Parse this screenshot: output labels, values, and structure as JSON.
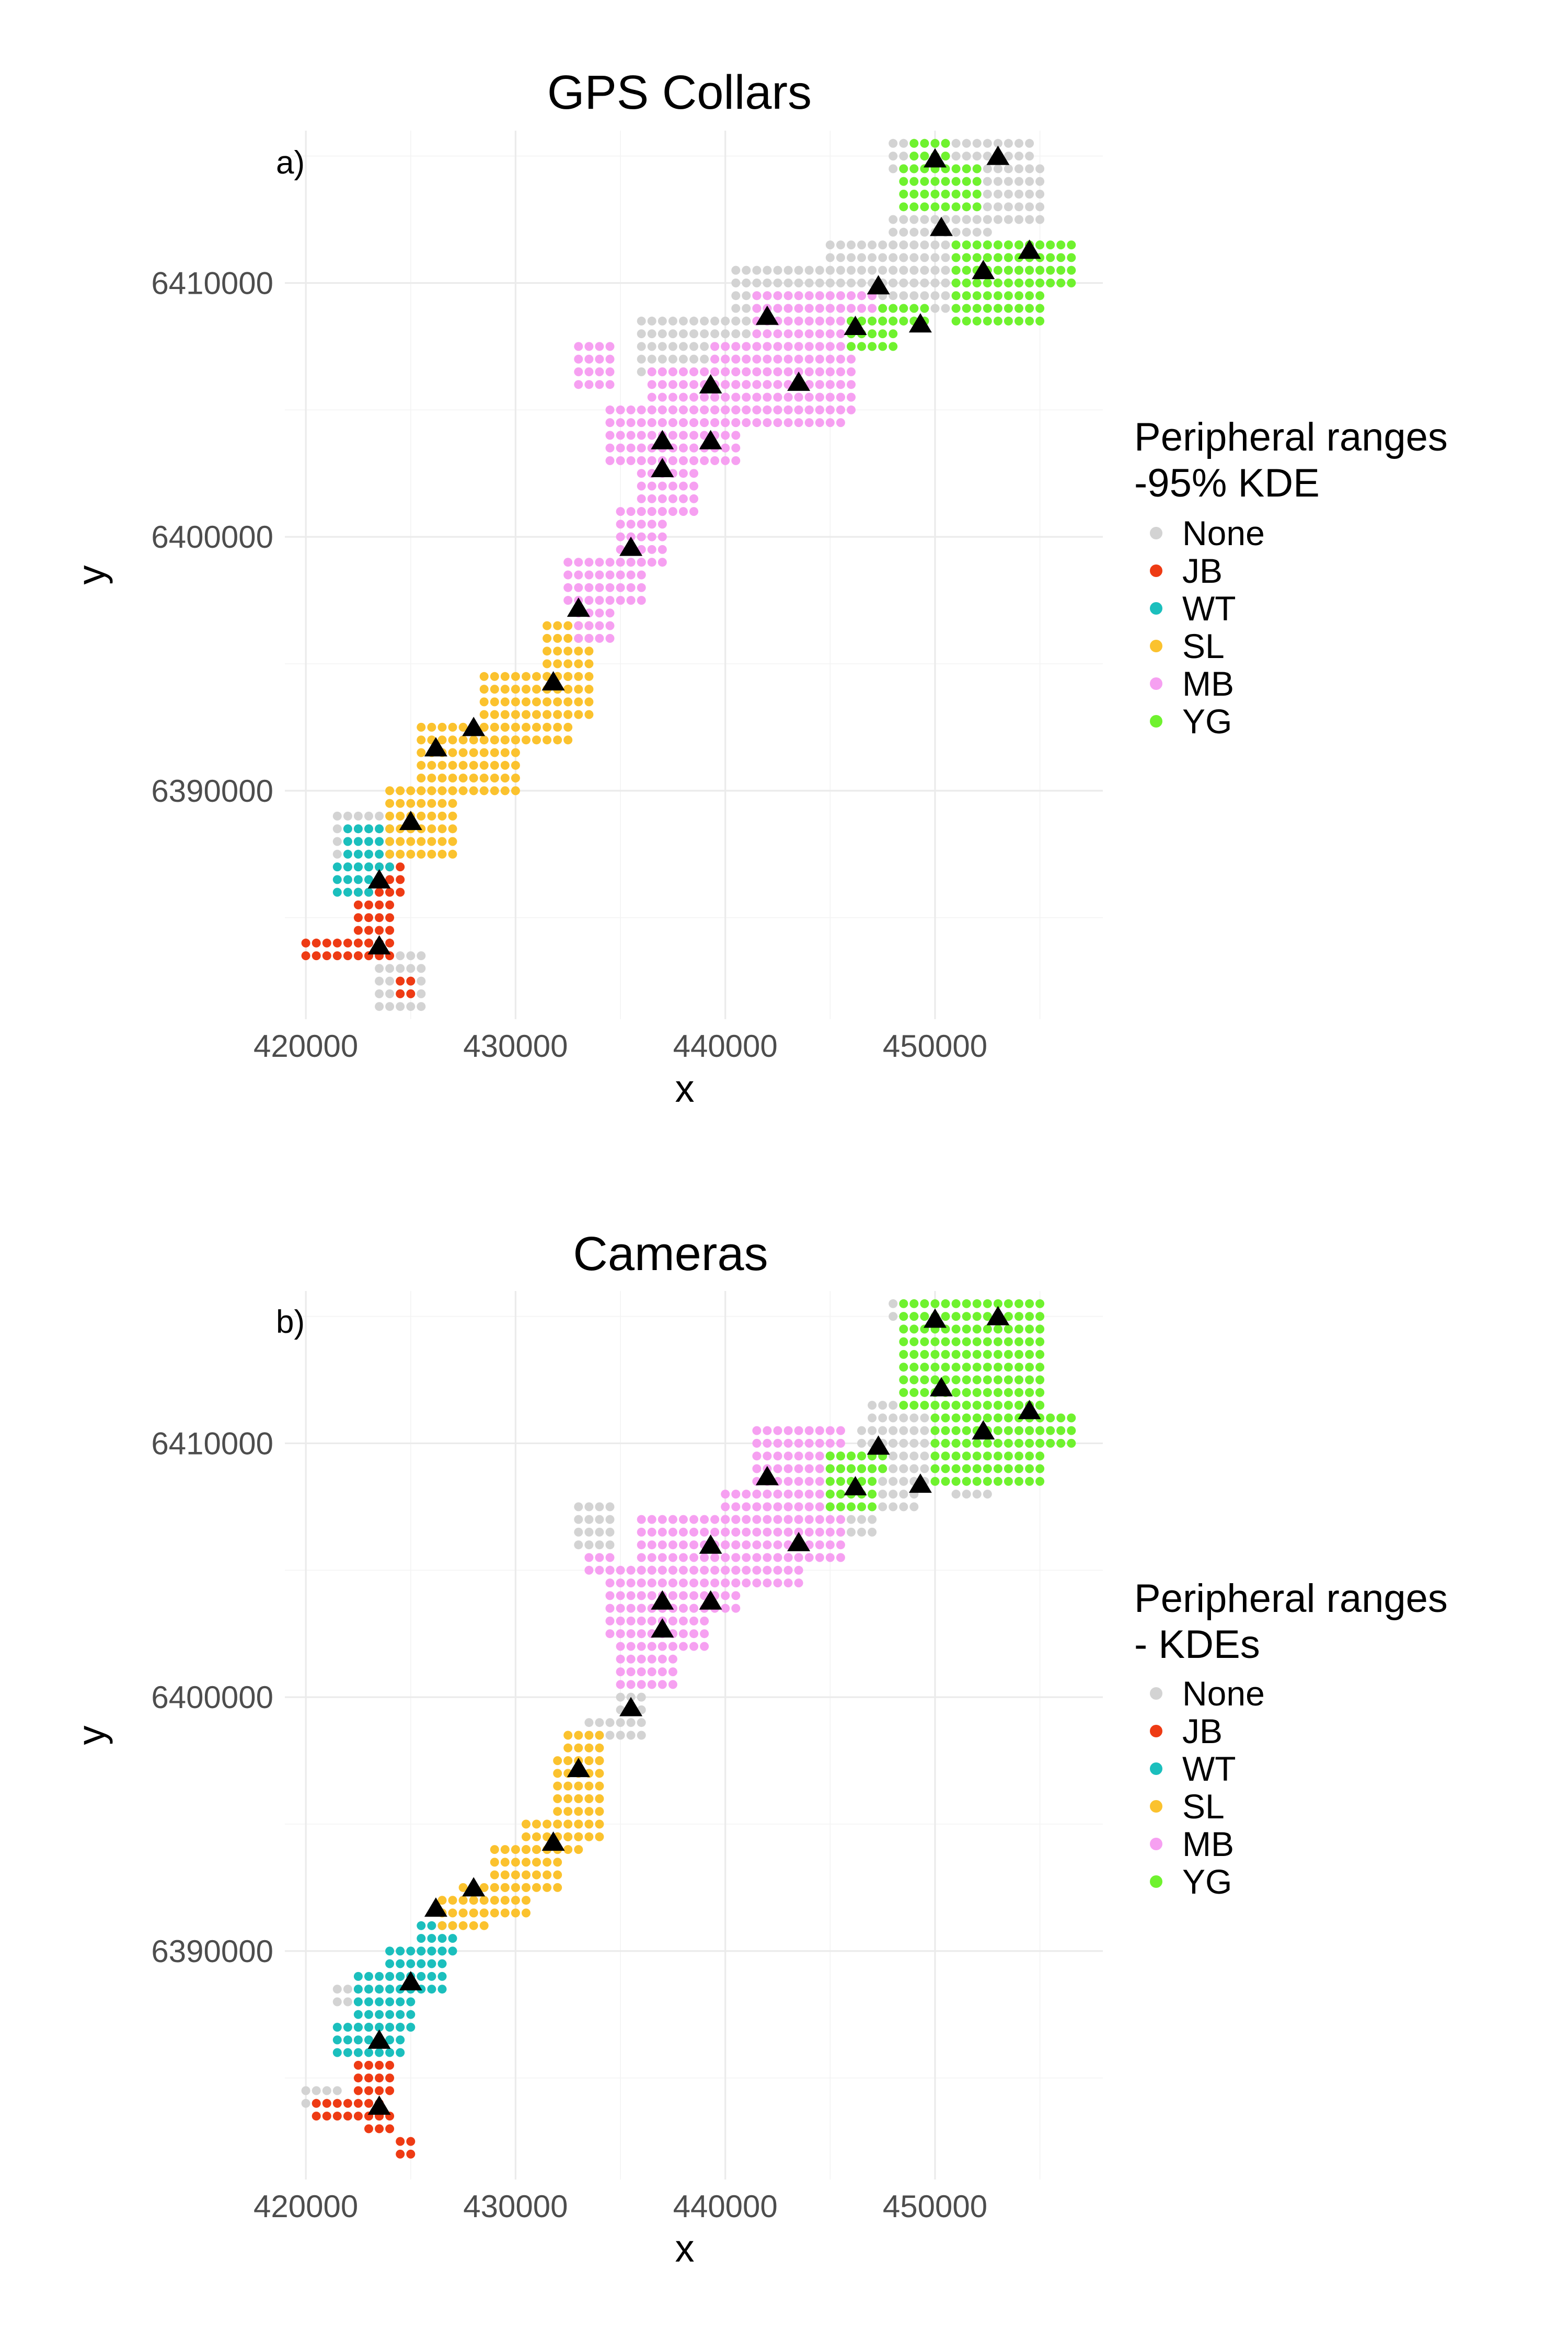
{
  "chart_data": [
    {
      "type": "scatter",
      "title": "GPS Collars",
      "panel_tag": "a)",
      "xlabel": "x",
      "ylabel": "y",
      "xlim": [
        419000,
        458000
      ],
      "ylim": [
        6381000,
        6416000
      ],
      "x_ticks": [
        420000,
        430000,
        440000,
        450000
      ],
      "x_tick_labels": [
        "420000",
        "430000",
        "440000",
        "450000"
      ],
      "y_ticks": [
        6390000,
        6400000,
        6410000
      ],
      "y_tick_labels": [
        "6390000",
        "6400000",
        "6410000"
      ],
      "grid": true,
      "legend": {
        "placement": "right",
        "title_lines": [
          "Peripheral ranges",
          "-95% KDE"
        ],
        "entries": [
          "None",
          "JB",
          "WT",
          "SL",
          "MB",
          "YG"
        ]
      },
      "series": [
        {
          "name": "None",
          "color": "#d3d3d3",
          "regions": [
            [
              421500,
              6387500,
              423500,
              6389000
            ],
            [
              423500,
              6381500,
              425500,
              6383500
            ],
            [
              436000,
              6406500,
              441000,
              6408500
            ],
            [
              440500,
              6408500,
              445000,
              6410800
            ],
            [
              445000,
              6408300,
              449000,
              6411500
            ],
            [
              448000,
              6410000,
              452500,
              6412500
            ],
            [
              449500,
              6409000,
              451500,
              6410500
            ],
            [
              448000,
              6414500,
              449500,
              6415500
            ],
            [
              450000,
              6415000,
              454500,
              6415600
            ],
            [
              451500,
              6412500,
              455000,
              6414500
            ]
          ]
        },
        {
          "name": "JB",
          "color": "#ee3b14",
          "regions": [
            [
              420000,
              6383500,
              423000,
              6384300
            ],
            [
              422500,
              6383500,
              424000,
              6386000
            ],
            [
              423500,
              6386000,
              424600,
              6387200
            ],
            [
              424200,
              6381800,
              425300,
              6382800
            ]
          ]
        },
        {
          "name": "WT",
          "color": "#1bbfbd",
          "regions": [
            [
              422000,
              6387000,
              424200,
              6388800
            ],
            [
              421500,
              6386000,
              423000,
              6387000
            ]
          ]
        },
        {
          "name": "SL",
          "color": "#fbc22e",
          "regions": [
            [
              424000,
              6387500,
              427000,
              6390000
            ],
            [
              425500,
              6390000,
              430000,
              6392600
            ],
            [
              428500,
              6392000,
              432500,
              6394500
            ],
            [
              431500,
              6393000,
              433500,
              6396500
            ]
          ]
        },
        {
          "name": "MB",
          "color": "#f6a0f1",
          "regions": [
            [
              433000,
              6395800,
              434500,
              6397300
            ],
            [
              432500,
              6397300,
              436000,
              6399300
            ],
            [
              435000,
              6399000,
              437000,
              6401000
            ],
            [
              436000,
              6401000,
              438500,
              6403500
            ],
            [
              434500,
              6403000,
              440500,
              6405000
            ],
            [
              436500,
              6404500,
              445500,
              6406800
            ],
            [
              433000,
              6405800,
              434500,
              6407500
            ],
            [
              439500,
              6405000,
              446000,
              6407500
            ],
            [
              441500,
              6407500,
              447000,
              6409600
            ]
          ]
        },
        {
          "name": "YG",
          "color": "#6ff22e",
          "regions": [
            [
              446000,
              6407300,
              448000,
              6408500
            ],
            [
              447500,
              6408300,
              449500,
              6409300
            ],
            [
              448500,
              6413000,
              452000,
              6414800
            ],
            [
              449000,
              6415000,
              450500,
              6415600
            ],
            [
              451000,
              6408500,
              455000,
              6411800
            ],
            [
              452500,
              6411300,
              456500,
              6411900
            ],
            [
              453500,
              6410000,
              456500,
              6411300
            ]
          ]
        }
      ],
      "points": {
        "name": "sites",
        "color": "#000000",
        "marker": "triangle",
        "x": [
          423500,
          423500,
          425000,
          426200,
          428000,
          431800,
          433000,
          435500,
          437000,
          437000,
          439300,
          439300,
          442000,
          443500,
          446200,
          447300,
          449300,
          450300,
          452300,
          454500,
          450000,
          453000
        ],
        "y": [
          6383900,
          6386500,
          6388800,
          6391700,
          6392500,
          6394300,
          6397200,
          6399600,
          6402700,
          6403800,
          6403800,
          6406000,
          6408700,
          6406100,
          6408300,
          6409900,
          6408400,
          6412200,
          6410500,
          6411300,
          6414900,
          6415000
        ]
      }
    },
    {
      "type": "scatter",
      "title": "Cameras",
      "panel_tag": "b)",
      "xlabel": "x",
      "ylabel": "y",
      "xlim": [
        419000,
        458000
      ],
      "ylim": [
        6381000,
        6416000
      ],
      "x_ticks": [
        420000,
        430000,
        440000,
        450000
      ],
      "x_tick_labels": [
        "420000",
        "430000",
        "440000",
        "450000"
      ],
      "y_ticks": [
        6390000,
        6400000,
        6410000
      ],
      "y_tick_labels": [
        "6390000",
        "6400000",
        "6410000"
      ],
      "grid": true,
      "legend": {
        "placement": "right",
        "title_lines": [
          "Peripheral ranges",
          "- KDEs"
        ],
        "entries": [
          "None",
          "JB",
          "WT",
          "SL",
          "MB",
          "YG"
        ]
      },
      "series": [
        {
          "name": "None",
          "color": "#d3d3d3",
          "regions": [
            [
              421500,
              6387800,
              423000,
              6388800
            ],
            [
              420000,
              6383900,
              421500,
              6384500
            ],
            [
              433000,
              6405800,
              434800,
              6407500
            ],
            [
              433200,
              6398300,
              436300,
              6399300
            ],
            [
              434800,
              6399300,
              436300,
              6400300
            ],
            [
              445500,
              6406300,
              447000,
              6407300
            ],
            [
              446500,
              6407300,
              449000,
              6409000
            ],
            [
              447000,
              6408500,
              449500,
              6411500
            ],
            [
              446500,
              6410000,
              448000,
              6410700
            ],
            [
              451000,
              6408000,
              452500,
              6408700
            ],
            [
              448500,
              6412000,
              450000,
              6413200
            ],
            [
              448000,
              6414800,
              449500,
              6415600
            ]
          ]
        },
        {
          "name": "JB",
          "color": "#ee3b14",
          "regions": [
            [
              420500,
              6383500,
              423500,
              6384300
            ],
            [
              422500,
              6384300,
              424000,
              6385800
            ],
            [
              423000,
              6383000,
              424000,
              6383500
            ],
            [
              424200,
              6381800,
              425300,
              6382800
            ]
          ]
        },
        {
          "name": "WT",
          "color": "#1bbfbd",
          "regions": [
            [
              421500,
              6385800,
              424500,
              6387000
            ],
            [
              422500,
              6387000,
              425000,
              6389000
            ],
            [
              424000,
              6388500,
              426500,
              6390000
            ],
            [
              425500,
              6390000,
              427000,
              6391200
            ]
          ]
        },
        {
          "name": "SL",
          "color": "#fbc22e",
          "regions": [
            [
              426500,
              6390800,
              428500,
              6392000
            ],
            [
              427500,
              6391500,
              430500,
              6392800
            ],
            [
              429000,
              6392500,
              432000,
              6394200
            ],
            [
              430500,
              6393800,
              433000,
              6395000
            ],
            [
              431800,
              6394500,
              434000,
              6397500
            ],
            [
              432500,
              6397500,
              434300,
              6398500
            ]
          ]
        },
        {
          "name": "MB",
          "color": "#f6a0f1",
          "regions": [
            [
              435000,
              6400500,
              437500,
              6402500
            ],
            [
              434500,
              6402500,
              437500,
              6405000
            ],
            [
              433500,
              6405000,
              434500,
              6405800
            ],
            [
              436000,
              6403500,
              440500,
              6407000
            ],
            [
              436500,
              6401800,
              439000,
              6403500
            ],
            [
              440000,
              6404500,
              443500,
              6408000
            ],
            [
              441500,
              6407500,
              445500,
              6410500
            ],
            [
              443000,
              6405500,
              445500,
              6407500
            ]
          ]
        },
        {
          "name": "YG",
          "color": "#6ff22e",
          "regions": [
            [
              445000,
              6407300,
              447000,
              6409500
            ],
            [
              445000,
              6409000,
              447500,
              6409800
            ],
            [
              448500,
              6411500,
              455000,
              6415600
            ],
            [
              450000,
              6408500,
              455000,
              6412000
            ],
            [
              454500,
              6410000,
              456500,
              6411200
            ]
          ]
        }
      ],
      "points": {
        "name": "sites",
        "color": "#000000",
        "marker": "triangle",
        "x": [
          423500,
          423500,
          425000,
          426200,
          428000,
          431800,
          433000,
          435500,
          437000,
          437000,
          439300,
          439300,
          442000,
          443500,
          446200,
          447300,
          449300,
          450300,
          452300,
          454500,
          450000,
          453000
        ],
        "y": [
          6383900,
          6386500,
          6388800,
          6391700,
          6392500,
          6394300,
          6397200,
          6399600,
          6402700,
          6403800,
          6403800,
          6406000,
          6408700,
          6406100,
          6408300,
          6409900,
          6408400,
          6412200,
          6410500,
          6411300,
          6414900,
          6415000
        ]
      }
    }
  ]
}
